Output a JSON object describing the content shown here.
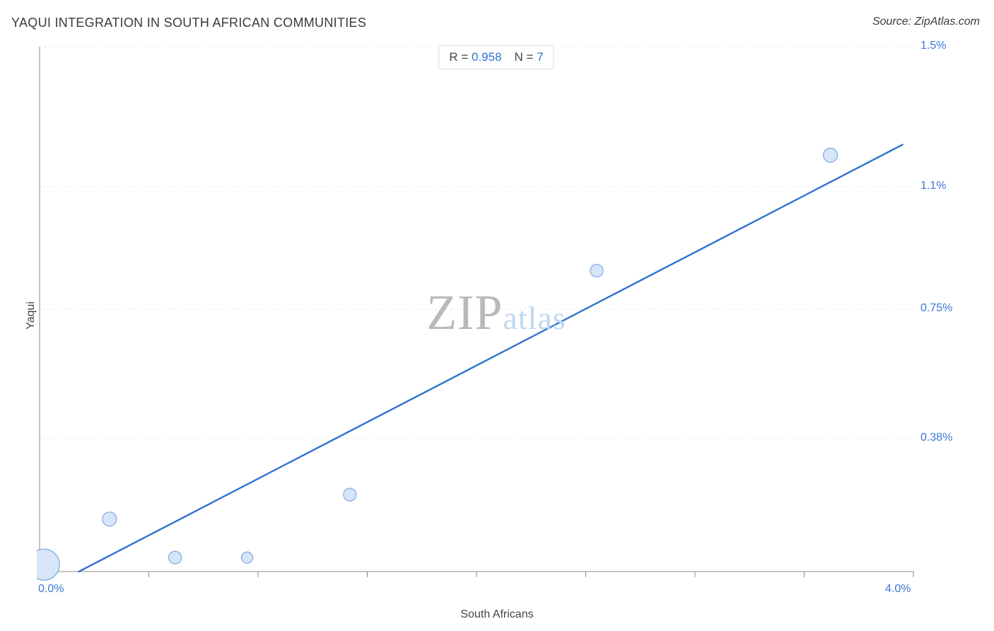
{
  "title": "YAQUI INTEGRATION IN SOUTH AFRICAN COMMUNITIES",
  "title_color": "#3a3a3a",
  "source_label": "Source: ZipAtlas.com",
  "source_color": "#3a3a3a",
  "stats": {
    "r_label": "R =",
    "r_value": "0.958",
    "n_label": "N =",
    "n_value": "7",
    "label_color": "#444444",
    "value_color": "#2f73d1",
    "border_color": "#dddddd"
  },
  "watermark": {
    "part1": "ZIP",
    "part2": "atlas",
    "color1": "#b9b9b9",
    "color2": "#bfd7f2"
  },
  "chart": {
    "type": "scatter",
    "background_color": "#ffffff",
    "grid_color": "#e7e7e7",
    "axis_color": "#888888",
    "tick_color": "#888888",
    "tick_label_color": "#3b78d6",
    "axis_label_color": "#444444",
    "xlabel": "South Africans",
    "ylabel": "Yaqui",
    "xlim": [
      0.0,
      4.0
    ],
    "ylim": [
      0.0,
      1.5
    ],
    "xtick_labels": [
      {
        "v": 0.0,
        "label": "0.0%"
      },
      {
        "v": 4.0,
        "label": "4.0%"
      }
    ],
    "xticks_minor": [
      0.0,
      0.5,
      1.0,
      1.5,
      2.0,
      2.5,
      3.0,
      3.5,
      4.0
    ],
    "ytick_labels": [
      {
        "v": 0.38,
        "label": "0.38%"
      },
      {
        "v": 0.75,
        "label": "0.75%"
      },
      {
        "v": 1.1,
        "label": "1.1%"
      },
      {
        "v": 1.5,
        "label": "1.5%"
      }
    ],
    "y_gridlines": [
      0.38,
      0.75,
      1.1,
      1.5
    ],
    "marker_fill": "#d6e5f8",
    "marker_stroke": "#7ea8de",
    "marker_stroke_width": 1.2,
    "points": [
      {
        "x": 0.02,
        "y": 0.02,
        "r": 22
      },
      {
        "x": 0.32,
        "y": 0.15,
        "r": 10
      },
      {
        "x": 0.62,
        "y": 0.04,
        "r": 9
      },
      {
        "x": 0.95,
        "y": 0.04,
        "r": 8
      },
      {
        "x": 1.42,
        "y": 0.22,
        "r": 9
      },
      {
        "x": 2.55,
        "y": 0.86,
        "r": 9
      },
      {
        "x": 3.62,
        "y": 1.19,
        "r": 10
      }
    ],
    "trend_line": {
      "color": "#2f73d1",
      "width": 2.4,
      "x1": 0.18,
      "y1": 0.0,
      "x2": 3.95,
      "y2": 1.22
    }
  }
}
